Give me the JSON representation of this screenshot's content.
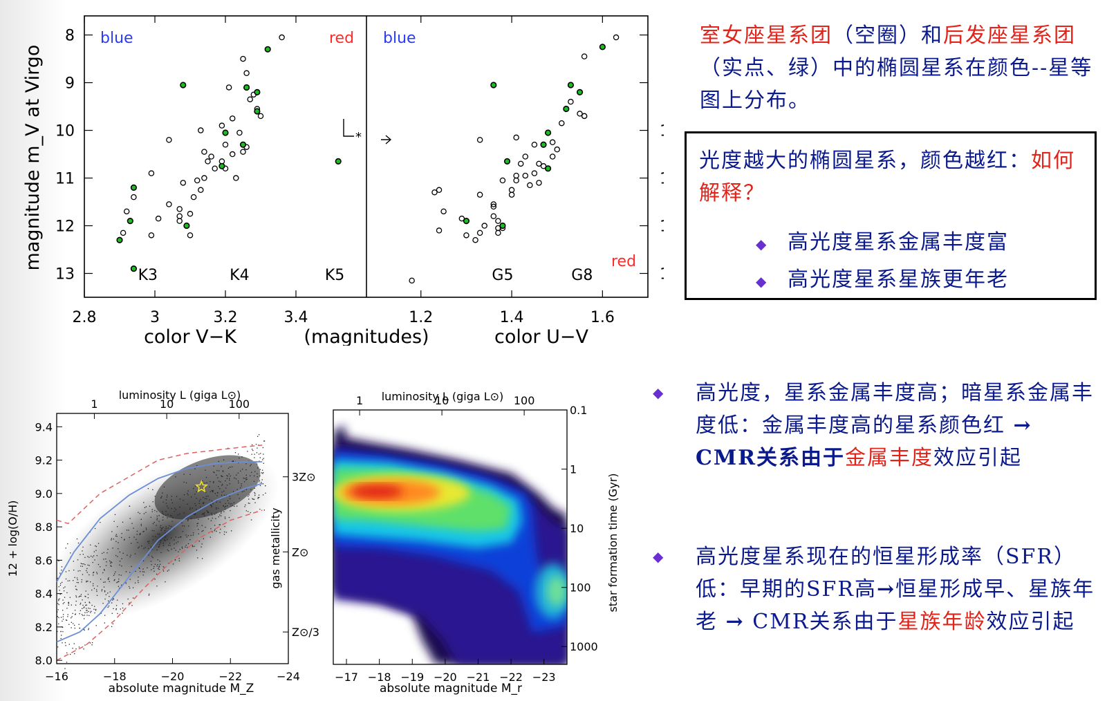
{
  "colors": {
    "text_blue": "#0a1a8c",
    "text_red": "#e2231a",
    "bullet": "#6a2fd0",
    "label_blue": "#2a3cf0",
    "label_red": "#ff2a2a",
    "filled_point": "#19c020"
  },
  "slide": {
    "title_parts": [
      "室女座星系团",
      "（空圈）和",
      "后发座星系团",
      "（实点、绿）中的椭圆星系在颜色--星等图上分布。"
    ],
    "box": {
      "question_part1": "光度越大的椭圆星系，颜色越红：",
      "question_part2": "如何解释？",
      "bullets": [
        "高光度星系金属丰度富",
        "高光度星系星族更年老"
      ]
    },
    "bullet1": {
      "part1": "高光度，星系金属丰度高；暗星系金属丰度低：金属丰度高的星系颜色红",
      "arrow": "→",
      "part2": "CMR关系由于",
      "red": "金属丰度",
      "part3": "效应引起"
    },
    "bullet2": {
      "part1": "高光度星系现在的恒星形成率（SFR）低：早期的SFR高",
      "arrow1": "→",
      "part2": "恒星形成早、星族年老",
      "arrow2": "→",
      "part3": "CMR关系由于",
      "red": "星族年龄",
      "part4": "效应引起"
    },
    "bullet_symbol": "◆"
  },
  "chart_data": [
    {
      "type": "scatter",
      "panel": "V-K",
      "title": "",
      "xlabel": "color V−K",
      "shared_xlabel": "(magnitudes)",
      "ylabel": "magnitude m_V at Virgo",
      "xlim": [
        2.8,
        3.6
      ],
      "ylim": [
        13.5,
        7.6
      ],
      "xticks": [
        2.8,
        3.0,
        3.2,
        3.4
      ],
      "xtick_labels": [
        "2.8",
        "3",
        "3.2",
        "3.4"
      ],
      "yticks": [
        8,
        9,
        10,
        11,
        12,
        13
      ],
      "label_blue": "blue",
      "label_red": "red",
      "spectral_labels": [
        {
          "text": "K3",
          "x": 2.98
        },
        {
          "text": "K4",
          "x": 3.24
        },
        {
          "text": "K5",
          "x": 3.51
        }
      ],
      "marker_text": "*",
      "series": [
        {
          "marker": "open",
          "points": [
            [
              3.36,
              8.05
            ],
            [
              3.25,
              8.5
            ],
            [
              3.26,
              8.8
            ],
            [
              3.21,
              9.1
            ],
            [
              3.27,
              9.35
            ],
            [
              3.28,
              9.25
            ],
            [
              3.29,
              9.55
            ],
            [
              3.3,
              9.7
            ],
            [
              3.22,
              9.75
            ],
            [
              3.19,
              9.9
            ],
            [
              3.13,
              10.0
            ],
            [
              3.24,
              10.05
            ],
            [
              3.2,
              10.3
            ],
            [
              3.26,
              10.35
            ],
            [
              3.25,
              10.45
            ],
            [
              3.04,
              10.2
            ],
            [
              3.14,
              10.45
            ],
            [
              3.16,
              10.55
            ],
            [
              3.15,
              10.65
            ],
            [
              3.19,
              10.65
            ],
            [
              3.22,
              10.5
            ],
            [
              3.17,
              10.8
            ],
            [
              3.2,
              10.8
            ],
            [
              3.23,
              11.0
            ],
            [
              3.12,
              11.05
            ],
            [
              3.14,
              11.0
            ],
            [
              2.99,
              10.9
            ],
            [
              3.08,
              11.1
            ],
            [
              3.13,
              11.25
            ],
            [
              3.11,
              11.4
            ],
            [
              3.04,
              11.55
            ],
            [
              3.07,
              11.65
            ],
            [
              3.07,
              11.8
            ],
            [
              3.07,
              11.9
            ],
            [
              3.1,
              11.75
            ],
            [
              3.01,
              11.85
            ],
            [
              2.92,
              11.7
            ],
            [
              2.91,
              12.15
            ],
            [
              2.99,
              12.2
            ],
            [
              3.1,
              12.2
            ],
            [
              2.94,
              11.4
            ]
          ]
        },
        {
          "marker": "filled",
          "points": [
            [
              3.08,
              9.05
            ],
            [
              3.32,
              8.3
            ],
            [
              3.26,
              9.1
            ],
            [
              3.29,
              9.2
            ],
            [
              3.29,
              9.6
            ],
            [
              3.2,
              10.05
            ],
            [
              3.25,
              10.3
            ],
            [
              3.19,
              10.75
            ],
            [
              3.52,
              10.65
            ],
            [
              2.94,
              11.2
            ],
            [
              2.93,
              11.9
            ],
            [
              2.9,
              12.3
            ],
            [
              3.09,
              12.0
            ],
            [
              2.94,
              12.9
            ]
          ]
        }
      ]
    },
    {
      "type": "scatter",
      "panel": "U-V",
      "title": "",
      "xlabel": "color U−V",
      "xlim": [
        1.08,
        1.7
      ],
      "ylim": [
        13.5,
        7.6
      ],
      "xticks": [
        1.2,
        1.4,
        1.6
      ],
      "xtick_labels": [
        "1.2",
        "1.4",
        "1.6"
      ],
      "yticks": [
        8,
        9,
        10,
        11,
        12,
        13
      ],
      "label_blue": "blue",
      "label_red": "red",
      "spectral_labels": [
        {
          "text": "G5",
          "x": 1.38
        },
        {
          "text": "G8",
          "x": 1.555
        }
      ],
      "series": [
        {
          "marker": "open",
          "points": [
            [
              1.18,
              13.15
            ],
            [
              1.23,
              11.3
            ],
            [
              1.24,
              11.25
            ],
            [
              1.24,
              12.1
            ],
            [
              1.25,
              11.7
            ],
            [
              1.29,
              11.85
            ],
            [
              1.3,
              12.2
            ],
            [
              1.32,
              12.3
            ],
            [
              1.33,
              12.15
            ],
            [
              1.33,
              11.35
            ],
            [
              1.34,
              12.0
            ],
            [
              1.36,
              11.55
            ],
            [
              1.36,
              11.8
            ],
            [
              1.37,
              11.9
            ],
            [
              1.37,
              12.05
            ],
            [
              1.37,
              12.15
            ],
            [
              1.38,
              12.05
            ],
            [
              1.38,
              11.05
            ],
            [
              1.4,
              11.35
            ],
            [
              1.4,
              11.25
            ],
            [
              1.41,
              11.05
            ],
            [
              1.41,
              10.95
            ],
            [
              1.42,
              10.7
            ],
            [
              1.43,
              10.95
            ],
            [
              1.44,
              11.15
            ],
            [
              1.45,
              10.9
            ],
            [
              1.46,
              11.1
            ],
            [
              1.47,
              10.75
            ],
            [
              1.48,
              10.8
            ],
            [
              1.49,
              10.55
            ],
            [
              1.5,
              10.4
            ],
            [
              1.41,
              10.15
            ],
            [
              1.43,
              10.55
            ],
            [
              1.45,
              10.3
            ],
            [
              1.46,
              10.7
            ],
            [
              1.49,
              10.25
            ],
            [
              1.51,
              9.85
            ],
            [
              1.53,
              9.4
            ],
            [
              1.55,
              9.65
            ],
            [
              1.56,
              9.7
            ],
            [
              1.56,
              9.7
            ],
            [
              1.56,
              8.45
            ],
            [
              1.63,
              8.05
            ],
            [
              1.33,
              10.2
            ],
            [
              1.36,
              11.6
            ],
            [
              1.47,
              10.3
            ]
          ]
        },
        {
          "marker": "filled",
          "points": [
            [
              1.36,
              9.05
            ],
            [
              1.6,
              8.25
            ],
            [
              1.52,
              9.55
            ],
            [
              1.53,
              9.05
            ],
            [
              1.55,
              9.2
            ],
            [
              1.48,
              10.05
            ],
            [
              1.47,
              10.3
            ],
            [
              1.48,
              10.8
            ],
            [
              1.39,
              10.65
            ],
            [
              1.3,
              11.9
            ],
            [
              1.38,
              12.0
            ]
          ]
        }
      ]
    },
    {
      "type": "scatter",
      "panel": "metallicity",
      "title": "",
      "xlabel": "absolute magnitude M_Z",
      "top_xlabel": "luminosity L (giga L⊙)",
      "ylabel": "12 + log(O/H)",
      "right_ylabel": "gas metallicity",
      "xlim": [
        -16,
        -24
      ],
      "ylim": [
        7.98,
        9.48
      ],
      "xticks": [
        -16,
        -18,
        -20,
        -22,
        -24
      ],
      "xtick_labels": [
        "−16",
        "−18",
        "−20",
        "−22",
        "−24"
      ],
      "yticks": [
        8.0,
        8.2,
        8.4,
        8.6,
        8.8,
        9.0,
        9.2,
        9.4
      ],
      "ytick_labels": [
        "8.0",
        "8.2",
        "8.4",
        "8.6",
        "8.8",
        "9.0",
        "9.2",
        "9.4"
      ],
      "top_ticks": [
        {
          "mag": -17.3,
          "label": "1"
        },
        {
          "mag": -19.8,
          "label": "10"
        },
        {
          "mag": -22.3,
          "label": "100"
        }
      ],
      "right_ticks": [
        {
          "y": 9.1,
          "label": "3Z⊙"
        },
        {
          "y": 8.65,
          "label": "Z⊙"
        },
        {
          "y": 8.17,
          "label": "Z⊙/3"
        }
      ],
      "star": {
        "x": -21.0,
        "y": 9.04
      },
      "series": [
        {
          "name": "",
          "style": "solid-blue",
          "points": [
            [
              -16.0,
              8.47
            ],
            [
              -16.6,
              8.65
            ],
            [
              -17.5,
              8.85
            ],
            [
              -18.5,
              8.99
            ],
            [
              -19.5,
              9.09
            ],
            [
              -20.5,
              9.15
            ],
            [
              -21.5,
              9.18
            ],
            [
              -22.5,
              9.19
            ],
            [
              -23.1,
              9.19
            ]
          ]
        },
        {
          "name": "",
          "style": "solid-blue",
          "points": [
            [
              -16.0,
              8.11
            ],
            [
              -16.8,
              8.17
            ],
            [
              -17.5,
              8.28
            ],
            [
              -18.5,
              8.5
            ],
            [
              -19.5,
              8.72
            ],
            [
              -20.5,
              8.86
            ],
            [
              -21.5,
              8.96
            ],
            [
              -22.5,
              9.03
            ],
            [
              -23.1,
              9.06
            ]
          ]
        },
        {
          "name": "",
          "style": "dashed-red",
          "points": [
            [
              -16.0,
              8.84
            ],
            [
              -16.4,
              8.82
            ],
            [
              -17.5,
              9.0
            ],
            [
              -18.5,
              9.1
            ],
            [
              -19.5,
              9.2
            ],
            [
              -20.5,
              9.24
            ],
            [
              -21.5,
              9.26
            ],
            [
              -22.5,
              9.28
            ],
            [
              -23.1,
              9.29
            ]
          ]
        },
        {
          "name": "",
          "style": "dashed-red",
          "points": [
            [
              -16.0,
              8.0
            ],
            [
              -17.0,
              8.09
            ],
            [
              -18.0,
              8.24
            ],
            [
              -19.0,
              8.43
            ],
            [
              -20.0,
              8.6
            ],
            [
              -21.0,
              8.74
            ],
            [
              -22.0,
              8.84
            ],
            [
              -23.1,
              8.9
            ]
          ]
        }
      ]
    },
    {
      "type": "heatmap",
      "panel": "star-formation-time",
      "title": "",
      "xlabel": "absolute magnitude M_r",
      "top_xlabel": "luminosity L (giga L⊙)",
      "right_ylabel": "star formation time (Gyr)",
      "xlim": [
        -16.6,
        -23.7
      ],
      "xticks": [
        -17,
        -18,
        -19,
        -20,
        -21,
        -22,
        -23
      ],
      "xtick_labels": [
        "−17",
        "−18",
        "−19",
        "−20",
        "−21",
        "−22",
        "−23"
      ],
      "ylim_log": [
        0.1,
        2000
      ],
      "right_ticks": [
        {
          "value": 0.1,
          "label": "0.1"
        },
        {
          "value": 1,
          "label": "1"
        },
        {
          "value": 10,
          "label": "10"
        },
        {
          "value": 100,
          "label": "100"
        },
        {
          "value": 1000,
          "label": "1000"
        }
      ],
      "top_ticks": [
        {
          "mag": -17.4,
          "label": "1"
        },
        {
          "mag": -19.9,
          "label": "10"
        },
        {
          "mag": -22.4,
          "label": "100"
        }
      ]
    }
  ]
}
